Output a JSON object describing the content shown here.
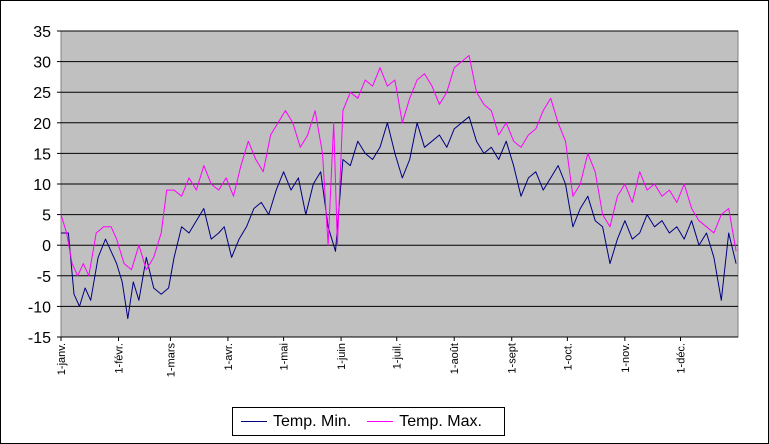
{
  "chart_data": {
    "type": "line",
    "title": "",
    "xlabel": "",
    "ylabel": "",
    "ylim": [
      -15,
      35
    ],
    "yticks": [
      35,
      30,
      25,
      20,
      15,
      10,
      5,
      0,
      -5,
      -10,
      -15
    ],
    "grid": true,
    "legend_position": "bottom",
    "background_color": "#C0C0C0",
    "month_labels": [
      "1-janv.",
      "1-févr.",
      "1-mars",
      "1-avr.",
      "1-mai",
      "1-juin",
      "1-juil.",
      "1-août",
      "1-sept",
      "1-oct.",
      "1-nov.",
      "1-déc."
    ],
    "month_start_days": [
      0,
      31,
      59,
      90,
      120,
      151,
      181,
      212,
      243,
      273,
      304,
      334
    ],
    "days_in_year": 365,
    "series": [
      {
        "name": "Temp. Min.",
        "color": "#000080",
        "points": [
          [
            0,
            2
          ],
          [
            4,
            2
          ],
          [
            7,
            -8
          ],
          [
            10,
            -10
          ],
          [
            13,
            -7
          ],
          [
            16,
            -9
          ],
          [
            20,
            -2
          ],
          [
            24,
            1
          ],
          [
            27,
            -1
          ],
          [
            30,
            -3
          ],
          [
            33,
            -6
          ],
          [
            36,
            -12
          ],
          [
            39,
            -6
          ],
          [
            42,
            -9
          ],
          [
            46,
            -2
          ],
          [
            50,
            -7
          ],
          [
            54,
            -8
          ],
          [
            58,
            -7
          ],
          [
            61,
            -2
          ],
          [
            65,
            3
          ],
          [
            69,
            2
          ],
          [
            73,
            4
          ],
          [
            77,
            6
          ],
          [
            81,
            1
          ],
          [
            85,
            2
          ],
          [
            88,
            3
          ],
          [
            92,
            -2
          ],
          [
            96,
            1
          ],
          [
            100,
            3
          ],
          [
            104,
            6
          ],
          [
            108,
            7
          ],
          [
            112,
            5
          ],
          [
            116,
            9
          ],
          [
            120,
            12
          ],
          [
            124,
            9
          ],
          [
            128,
            11
          ],
          [
            132,
            5
          ],
          [
            136,
            10
          ],
          [
            140,
            12
          ],
          [
            144,
            3
          ],
          [
            148,
            -1
          ],
          [
            152,
            14
          ],
          [
            156,
            13
          ],
          [
            160,
            17
          ],
          [
            164,
            15
          ],
          [
            168,
            14
          ],
          [
            172,
            16
          ],
          [
            176,
            20
          ],
          [
            180,
            15
          ],
          [
            184,
            11
          ],
          [
            188,
            14
          ],
          [
            192,
            20
          ],
          [
            196,
            16
          ],
          [
            200,
            17
          ],
          [
            204,
            18
          ],
          [
            208,
            16
          ],
          [
            212,
            19
          ],
          [
            216,
            20
          ],
          [
            220,
            21
          ],
          [
            224,
            17
          ],
          [
            228,
            15
          ],
          [
            232,
            16
          ],
          [
            236,
            14
          ],
          [
            240,
            17
          ],
          [
            244,
            13
          ],
          [
            248,
            8
          ],
          [
            252,
            11
          ],
          [
            256,
            12
          ],
          [
            260,
            9
          ],
          [
            264,
            11
          ],
          [
            268,
            13
          ],
          [
            272,
            10
          ],
          [
            276,
            3
          ],
          [
            280,
            6
          ],
          [
            284,
            8
          ],
          [
            288,
            4
          ],
          [
            292,
            3
          ],
          [
            296,
            -3
          ],
          [
            300,
            1
          ],
          [
            304,
            4
          ],
          [
            308,
            1
          ],
          [
            312,
            2
          ],
          [
            316,
            5
          ],
          [
            320,
            3
          ],
          [
            324,
            4
          ],
          [
            328,
            2
          ],
          [
            332,
            3
          ],
          [
            336,
            1
          ],
          [
            340,
            4
          ],
          [
            344,
            0
          ],
          [
            348,
            2
          ],
          [
            352,
            -2
          ],
          [
            356,
            -9
          ],
          [
            360,
            2
          ],
          [
            364,
            -3
          ]
        ]
      },
      {
        "name": "Temp. Max.",
        "color": "#FF00FF",
        "points": [
          [
            0,
            5
          ],
          [
            3,
            2
          ],
          [
            6,
            -3
          ],
          [
            9,
            -5
          ],
          [
            12,
            -3
          ],
          [
            15,
            -5
          ],
          [
            19,
            2
          ],
          [
            23,
            3
          ],
          [
            27,
            3
          ],
          [
            30,
            1
          ],
          [
            34,
            -3
          ],
          [
            38,
            -4
          ],
          [
            42,
            0
          ],
          [
            46,
            -4
          ],
          [
            50,
            -2
          ],
          [
            54,
            2
          ],
          [
            57,
            9
          ],
          [
            61,
            9
          ],
          [
            65,
            8
          ],
          [
            69,
            11
          ],
          [
            73,
            9
          ],
          [
            77,
            13
          ],
          [
            81,
            10
          ],
          [
            85,
            9
          ],
          [
            89,
            11
          ],
          [
            93,
            8
          ],
          [
            97,
            13
          ],
          [
            101,
            17
          ],
          [
            105,
            14
          ],
          [
            109,
            12
          ],
          [
            113,
            18
          ],
          [
            117,
            20
          ],
          [
            121,
            22
          ],
          [
            125,
            20
          ],
          [
            129,
            16
          ],
          [
            133,
            18
          ],
          [
            137,
            22
          ],
          [
            141,
            15
          ],
          [
            144,
            0
          ],
          [
            147,
            20
          ],
          [
            149,
            0
          ],
          [
            152,
            22
          ],
          [
            156,
            25
          ],
          [
            160,
            24
          ],
          [
            164,
            27
          ],
          [
            168,
            26
          ],
          [
            172,
            29
          ],
          [
            176,
            26
          ],
          [
            180,
            27
          ],
          [
            184,
            20
          ],
          [
            188,
            24
          ],
          [
            192,
            27
          ],
          [
            196,
            28
          ],
          [
            200,
            26
          ],
          [
            204,
            23
          ],
          [
            208,
            25
          ],
          [
            212,
            29
          ],
          [
            216,
            30
          ],
          [
            220,
            31
          ],
          [
            224,
            25
          ],
          [
            228,
            23
          ],
          [
            232,
            22
          ],
          [
            236,
            18
          ],
          [
            240,
            20
          ],
          [
            244,
            17
          ],
          [
            248,
            16
          ],
          [
            252,
            18
          ],
          [
            256,
            19
          ],
          [
            260,
            22
          ],
          [
            264,
            24
          ],
          [
            268,
            20
          ],
          [
            272,
            17
          ],
          [
            276,
            8
          ],
          [
            280,
            10
          ],
          [
            284,
            15
          ],
          [
            288,
            12
          ],
          [
            292,
            5
          ],
          [
            296,
            3
          ],
          [
            300,
            8
          ],
          [
            304,
            10
          ],
          [
            308,
            7
          ],
          [
            312,
            12
          ],
          [
            316,
            9
          ],
          [
            320,
            10
          ],
          [
            324,
            8
          ],
          [
            328,
            9
          ],
          [
            332,
            7
          ],
          [
            336,
            10
          ],
          [
            340,
            6
          ],
          [
            344,
            4
          ],
          [
            348,
            3
          ],
          [
            352,
            2
          ],
          [
            356,
            5
          ],
          [
            360,
            6
          ],
          [
            364,
            -1
          ]
        ]
      }
    ]
  }
}
